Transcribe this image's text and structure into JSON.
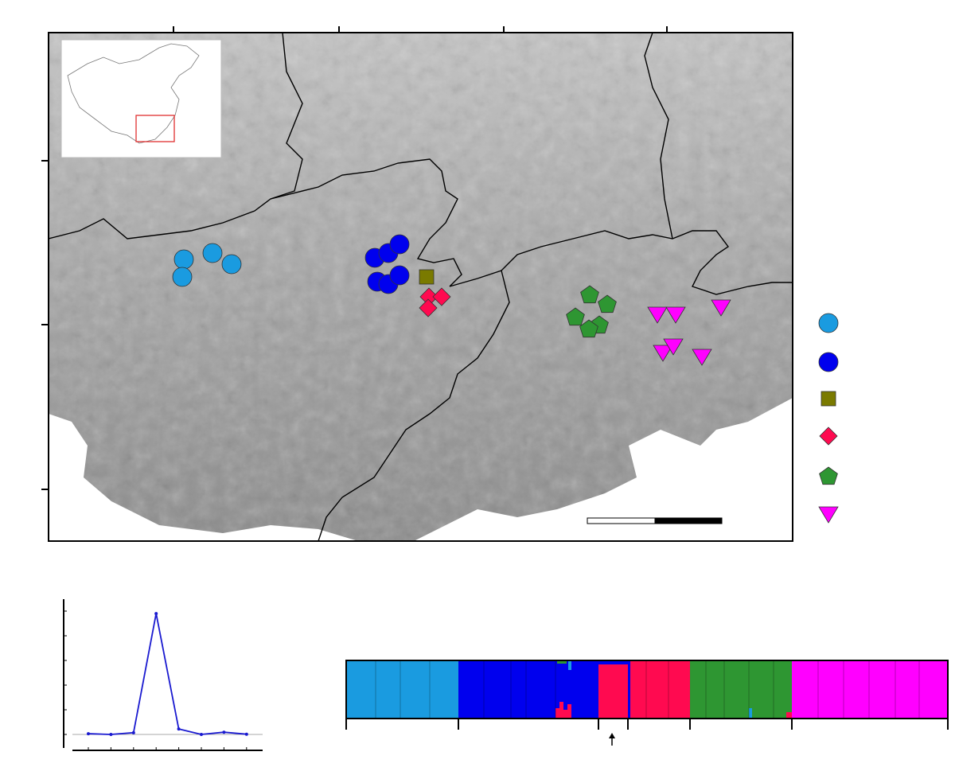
{
  "colors": {
    "pop1": "#1a9be0",
    "pop2": "#0000ee",
    "pop3": "#7a7a00",
    "pop4": "#ff0a50",
    "pop5": "#2e9632",
    "pop6": "#ff00ff",
    "terrain": "#9a9a9a",
    "inset_box": "#e03030",
    "delta_line": "#1a1ad0"
  },
  "legend": [
    {
      "shape": "circle",
      "color": "#1a9be0"
    },
    {
      "shape": "circle",
      "color": "#0000ee"
    },
    {
      "shape": "square",
      "color": "#7a7a00"
    },
    {
      "shape": "diamond",
      "color": "#ff0a50"
    },
    {
      "shape": "pentagon",
      "color": "#2e9632"
    },
    {
      "shape": "triangle-down",
      "color": "#ff00ff"
    }
  ],
  "map_icons": [
    "arrow-up-icon"
  ],
  "chart_data": {
    "type": "line",
    "title": "",
    "xlabel": "",
    "ylabel": "",
    "x": [
      1,
      2,
      3,
      4,
      5,
      6,
      7,
      8
    ],
    "y": [
      0.03,
      0.0,
      0.07,
      4.9,
      0.22,
      0.0,
      0.09,
      0.01
    ],
    "ylim": [
      -0.8,
      5.2
    ],
    "grid": false,
    "baseline": 0
  }
}
